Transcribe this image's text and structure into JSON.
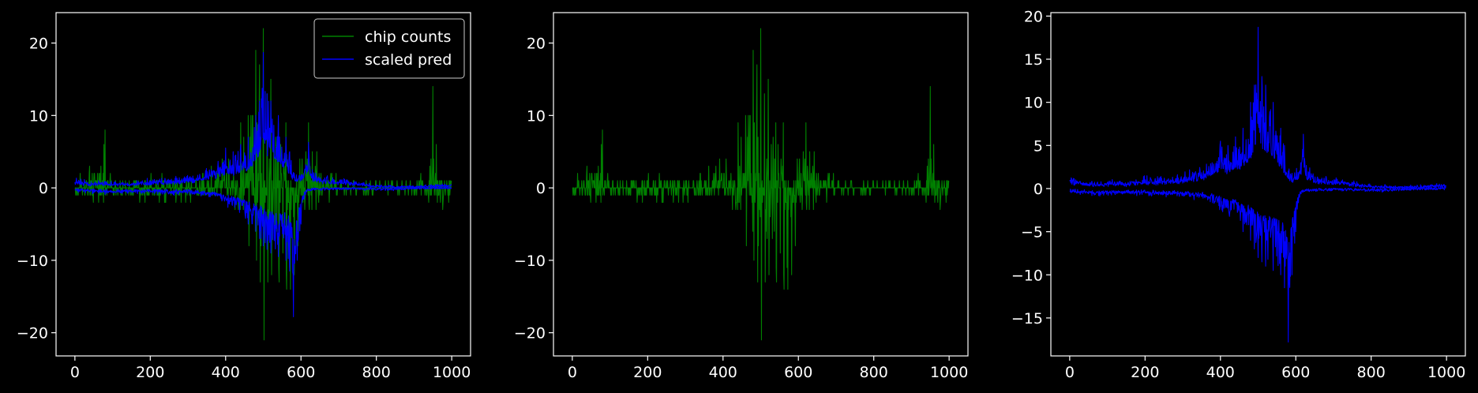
{
  "figure": {
    "background": "#000000",
    "axis_color": "#ffffff",
    "text_color": "#ffffff"
  },
  "chart_data": [
    {
      "type": "line",
      "title": "",
      "xlabel": "",
      "ylabel": "",
      "xlim": [
        -50,
        1050
      ],
      "ylim": [
        -23.2,
        24.2
      ],
      "xticks": [
        0,
        200,
        400,
        600,
        800,
        1000
      ],
      "xtick_labels": [
        "0",
        "200",
        "400",
        "600",
        "800",
        "1000"
      ],
      "yticks": [
        20,
        10,
        0,
        -10,
        -20
      ],
      "ytick_labels": [
        "20",
        "10",
        "0",
        "−10",
        "−20"
      ],
      "grid": false,
      "legend": {
        "placement": "top-right",
        "entries": [
          {
            "label": "chip counts",
            "color": "#008000"
          },
          {
            "label": "scaled pred",
            "color": "#0000ff"
          }
        ]
      },
      "series": [
        {
          "name": "chip counts",
          "color": "#008000",
          "kind": "signed_count_trace",
          "points": 1000,
          "envelope": {
            "x": [
              0,
              60,
              80,
              100,
              150,
              200,
              250,
              300,
              350,
              380,
              400,
              420,
              440,
              460,
              480,
              490,
              500,
              510,
              520,
              540,
              560,
              570,
              580,
              590,
              600,
              620,
              640,
              660,
              680,
              700,
              750,
              800,
              850,
              880,
              900,
              940,
              950,
              960,
              980,
              1000
            ],
            "upper": [
              4,
              4,
              8,
              2,
              2,
              2,
              2,
              2,
              3,
              5,
              6,
              6,
              9,
              10,
              19,
              17,
              22,
              13,
              15,
              9,
              9,
              4,
              4,
              3,
              5,
              9,
              7,
              6,
              3,
              2,
              1,
              1,
              1,
              2,
              2,
              2,
              14,
              6,
              2,
              2
            ],
            "lower": [
              -1,
              -3,
              -3,
              -2,
              -2,
              -2,
              -2,
              -2,
              -2,
              -2,
              -2,
              -3,
              -5,
              -8,
              -10,
              -13,
              -21,
              -13,
              -12,
              -13,
              -14,
              -14,
              -12,
              -8,
              -4,
              -5,
              -5,
              -3,
              -2,
              -1,
              -1,
              -1,
              -1,
              -1,
              -1,
              -2,
              -2,
              -3,
              -6,
              -2
            ]
          }
        },
        {
          "name": "scaled pred",
          "color": "#0000ff",
          "kind": "dual_band_trace",
          "points": 1000,
          "envelope": {
            "x": [
              0,
              50,
              100,
              150,
              200,
              250,
              300,
              350,
              380,
              400,
              420,
              440,
              460,
              480,
              490,
              500,
              510,
              520,
              540,
              560,
              570,
              580,
              590,
              600,
              610,
              620,
              630,
              650,
              700,
              750,
              800,
              850,
              900,
              950,
              1000
            ],
            "upper": [
              1.5,
              1.0,
              1.0,
              1.0,
              1.5,
              1.5,
              2.0,
              3.0,
              4.0,
              5.5,
              5.0,
              6.0,
              7.0,
              10.0,
              12.0,
              18.7,
              13.0,
              12.0,
              10.0,
              7.0,
              5.0,
              3.0,
              2.0,
              2.5,
              4.0,
              6.3,
              3.0,
              2.0,
              1.5,
              1.0,
              0.5,
              0.3,
              0.3,
              0.5,
              0.6
            ],
            "lower": [
              -0.5,
              -0.8,
              -1.0,
              -0.8,
              -0.8,
              -1.0,
              -1.0,
              -1.5,
              -2.0,
              -3.0,
              -3.5,
              -4.0,
              -5.0,
              -6.0,
              -7.0,
              -8.0,
              -8.5,
              -9.0,
              -9.5,
              -10.0,
              -11.5,
              -17.8,
              -10.0,
              -5.0,
              -1.5,
              -0.5,
              -0.3,
              -0.3,
              -0.2,
              -0.2,
              -0.3,
              -0.3,
              -0.1,
              0.0,
              0.0
            ]
          }
        }
      ]
    },
    {
      "type": "line",
      "title": "",
      "xlabel": "",
      "ylabel": "",
      "xlim": [
        -50,
        1050
      ],
      "ylim": [
        -23.2,
        24.2
      ],
      "xticks": [
        0,
        200,
        400,
        600,
        800,
        1000
      ],
      "xtick_labels": [
        "0",
        "200",
        "400",
        "600",
        "800",
        "1000"
      ],
      "yticks": [
        20,
        10,
        0,
        -10,
        -20
      ],
      "ytick_labels": [
        "20",
        "10",
        "0",
        "−10",
        "−20"
      ],
      "grid": false,
      "series": [
        {
          "color": "#008000",
          "kind": "signed_count_trace",
          "points": 1000,
          "envelope": {
            "x": [
              0,
              60,
              80,
              100,
              150,
              200,
              250,
              300,
              350,
              380,
              400,
              420,
              440,
              460,
              480,
              490,
              500,
              510,
              520,
              540,
              560,
              570,
              580,
              590,
              600,
              620,
              640,
              660,
              680,
              700,
              750,
              800,
              850,
              880,
              900,
              940,
              950,
              960,
              980,
              1000
            ],
            "upper": [
              4,
              4,
              8,
              2,
              2,
              2,
              2,
              2,
              3,
              5,
              6,
              6,
              9,
              10,
              19,
              17,
              22,
              13,
              15,
              9,
              9,
              4,
              4,
              3,
              5,
              9,
              7,
              6,
              3,
              2,
              1,
              1,
              1,
              2,
              2,
              2,
              14,
              6,
              2,
              2
            ],
            "lower": [
              -1,
              -3,
              -3,
              -2,
              -2,
              -2,
              -2,
              -2,
              -2,
              -2,
              -2,
              -3,
              -5,
              -8,
              -10,
              -13,
              -21,
              -13,
              -12,
              -13,
              -14,
              -14,
              -12,
              -8,
              -4,
              -5,
              -5,
              -3,
              -2,
              -1,
              -1,
              -1,
              -1,
              -1,
              -1,
              -2,
              -2,
              -3,
              -6,
              -2
            ]
          }
        }
      ]
    },
    {
      "type": "line",
      "title": "",
      "xlabel": "",
      "ylabel": "",
      "xlim": [
        -50,
        1050
      ],
      "ylim": [
        -19.4,
        20.4
      ],
      "xticks": [
        0,
        200,
        400,
        600,
        800,
        1000
      ],
      "xtick_labels": [
        "0",
        "200",
        "400",
        "600",
        "800",
        "1000"
      ],
      "yticks": [
        20,
        15,
        10,
        5,
        0,
        -5,
        -10,
        -15
      ],
      "ytick_labels": [
        "20",
        "15",
        "10",
        "5",
        "0",
        "−5",
        "−10",
        "−15"
      ],
      "grid": false,
      "series": [
        {
          "color": "#0000ff",
          "kind": "dual_band_trace",
          "points": 1000,
          "envelope": {
            "x": [
              0,
              50,
              100,
              150,
              200,
              250,
              300,
              350,
              380,
              400,
              420,
              440,
              460,
              480,
              490,
              500,
              510,
              520,
              540,
              560,
              570,
              580,
              590,
              600,
              610,
              620,
              630,
              650,
              700,
              750,
              800,
              850,
              900,
              950,
              1000
            ],
            "upper": [
              1.5,
              1.0,
              1.0,
              1.0,
              1.5,
              1.5,
              2.0,
              3.0,
              4.0,
              5.5,
              5.0,
              6.0,
              7.0,
              10.0,
              12.0,
              18.7,
              13.0,
              12.0,
              10.0,
              7.0,
              5.0,
              3.0,
              2.0,
              2.5,
              4.0,
              6.3,
              3.0,
              2.0,
              1.5,
              1.0,
              0.5,
              0.3,
              0.3,
              0.5,
              0.6
            ],
            "lower": [
              -0.5,
              -0.8,
              -1.0,
              -0.8,
              -0.8,
              -1.0,
              -1.0,
              -1.5,
              -2.0,
              -3.0,
              -3.5,
              -4.0,
              -5.0,
              -6.0,
              -7.0,
              -8.0,
              -8.5,
              -9.0,
              -9.5,
              -10.0,
              -11.5,
              -17.8,
              -10.0,
              -5.0,
              -1.5,
              -0.5,
              -0.3,
              -0.3,
              -0.2,
              -0.2,
              -0.3,
              -0.3,
              -0.1,
              0.0,
              0.0
            ]
          }
        }
      ]
    }
  ]
}
